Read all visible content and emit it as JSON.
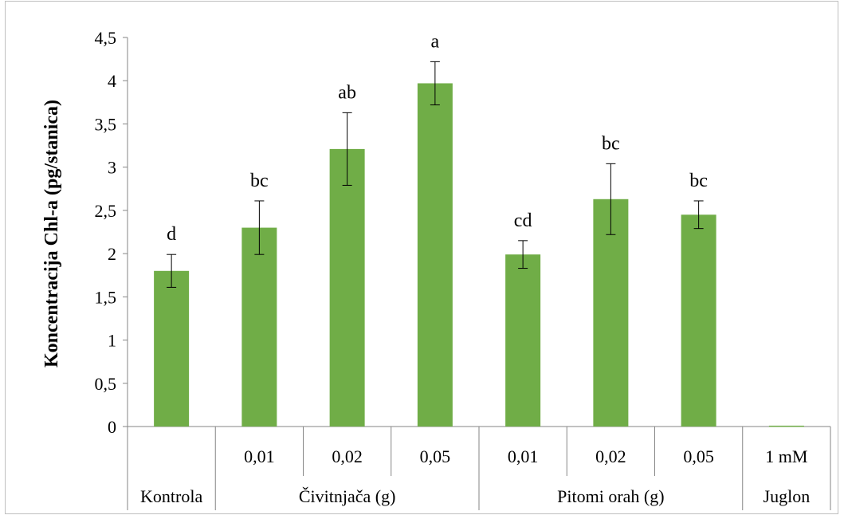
{
  "chart_data": {
    "type": "bar",
    "title": "",
    "ylabel": "Koncentracija Chl-a (pg/stanica)",
    "xlabel": "",
    "ylim": [
      0,
      4.5
    ],
    "yticks": [
      "0",
      "0,5",
      "1",
      "1,5",
      "2",
      "2,5",
      "3",
      "3,5",
      "4",
      "4,5"
    ],
    "grid": false,
    "bar_color": "#70ad47",
    "categories": [
      "",
      "0,01",
      "0,02",
      "0,05",
      "0,01",
      "0,02",
      "0,05",
      "1 mM"
    ],
    "groups": [
      {
        "label": "Kontrola",
        "span": [
          0,
          0
        ]
      },
      {
        "label": "Čivitnjača (g)",
        "span": [
          1,
          3
        ]
      },
      {
        "label": "Pitomi orah (g)",
        "span": [
          4,
          6
        ]
      },
      {
        "label": "Juglon",
        "span": [
          7,
          7
        ]
      }
    ],
    "values": [
      1.8,
      2.3,
      3.21,
      3.97,
      1.99,
      2.63,
      2.45,
      0.01
    ],
    "error": [
      0.19,
      0.31,
      0.42,
      0.25,
      0.16,
      0.41,
      0.16,
      0
    ],
    "significance": [
      "d",
      "bc",
      "ab",
      "a",
      "cd",
      "bc",
      "bc",
      ""
    ]
  }
}
